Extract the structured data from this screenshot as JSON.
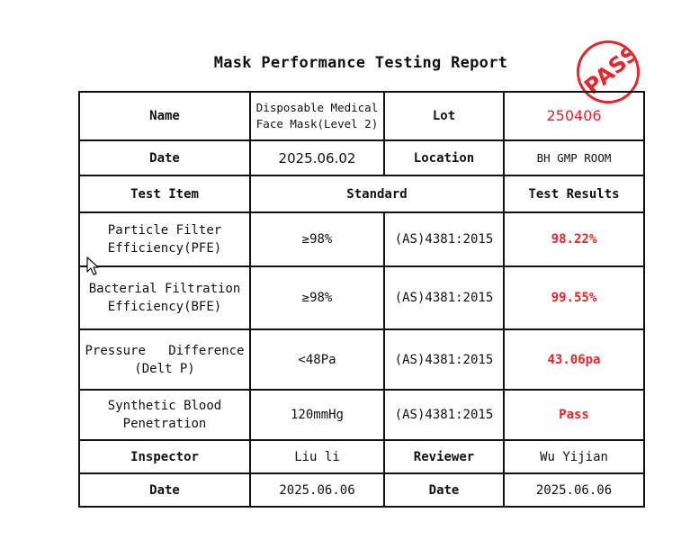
{
  "title": "Mask Performance Testing Report",
  "stamp": {
    "text": "PASS",
    "color": "#e5262b"
  },
  "header": {
    "name_label": "Name",
    "name_value_line1": "Disposable Medical",
    "name_value_line2": "Face Mask(Level 2)",
    "lot_label": "Lot",
    "lot_value": "250406",
    "date_label": "Date",
    "date_value": "2025.06.02",
    "location_label": "Location",
    "location_value": "BH GMP ROOM"
  },
  "columns": {
    "test_item": "Test Item",
    "standard": "Standard",
    "results": "Test Results"
  },
  "tests": [
    {
      "item_line1": "Particle Filter",
      "item_line2": "Efficiency(PFE)",
      "requirement": "≥98%",
      "standard": "(AS)4381:2015",
      "result": "98.22%"
    },
    {
      "item_line1": "Bacterial Filtration",
      "item_line2": "Efficiency(BFE)",
      "requirement": "≥98%",
      "standard": "(AS)4381:2015",
      "result": "99.55%"
    },
    {
      "item_line1": "Pressure   Difference",
      "item_line2": "(Delt P)",
      "requirement": "<48Pa",
      "standard": "(AS)4381:2015",
      "result": "43.06pa"
    },
    {
      "item_line1": "Synthetic Blood",
      "item_line2": "Penetration",
      "requirement": "120mmHg",
      "standard": "(AS)4381:2015",
      "result": "Pass"
    }
  ],
  "footer": {
    "inspector_label": "Inspector",
    "inspector_value": "Liu li",
    "reviewer_label": "Reviewer",
    "reviewer_value": "Wu Yijian",
    "date_label_left": "Date",
    "date_value_left": "2025.06.06",
    "date_label_right": "Date",
    "date_value_right": "2025.06.06"
  },
  "colors": {
    "accent": "#e5262b",
    "text": "#111111"
  },
  "cursor": {
    "icon": "arrow-cursor-icon"
  }
}
